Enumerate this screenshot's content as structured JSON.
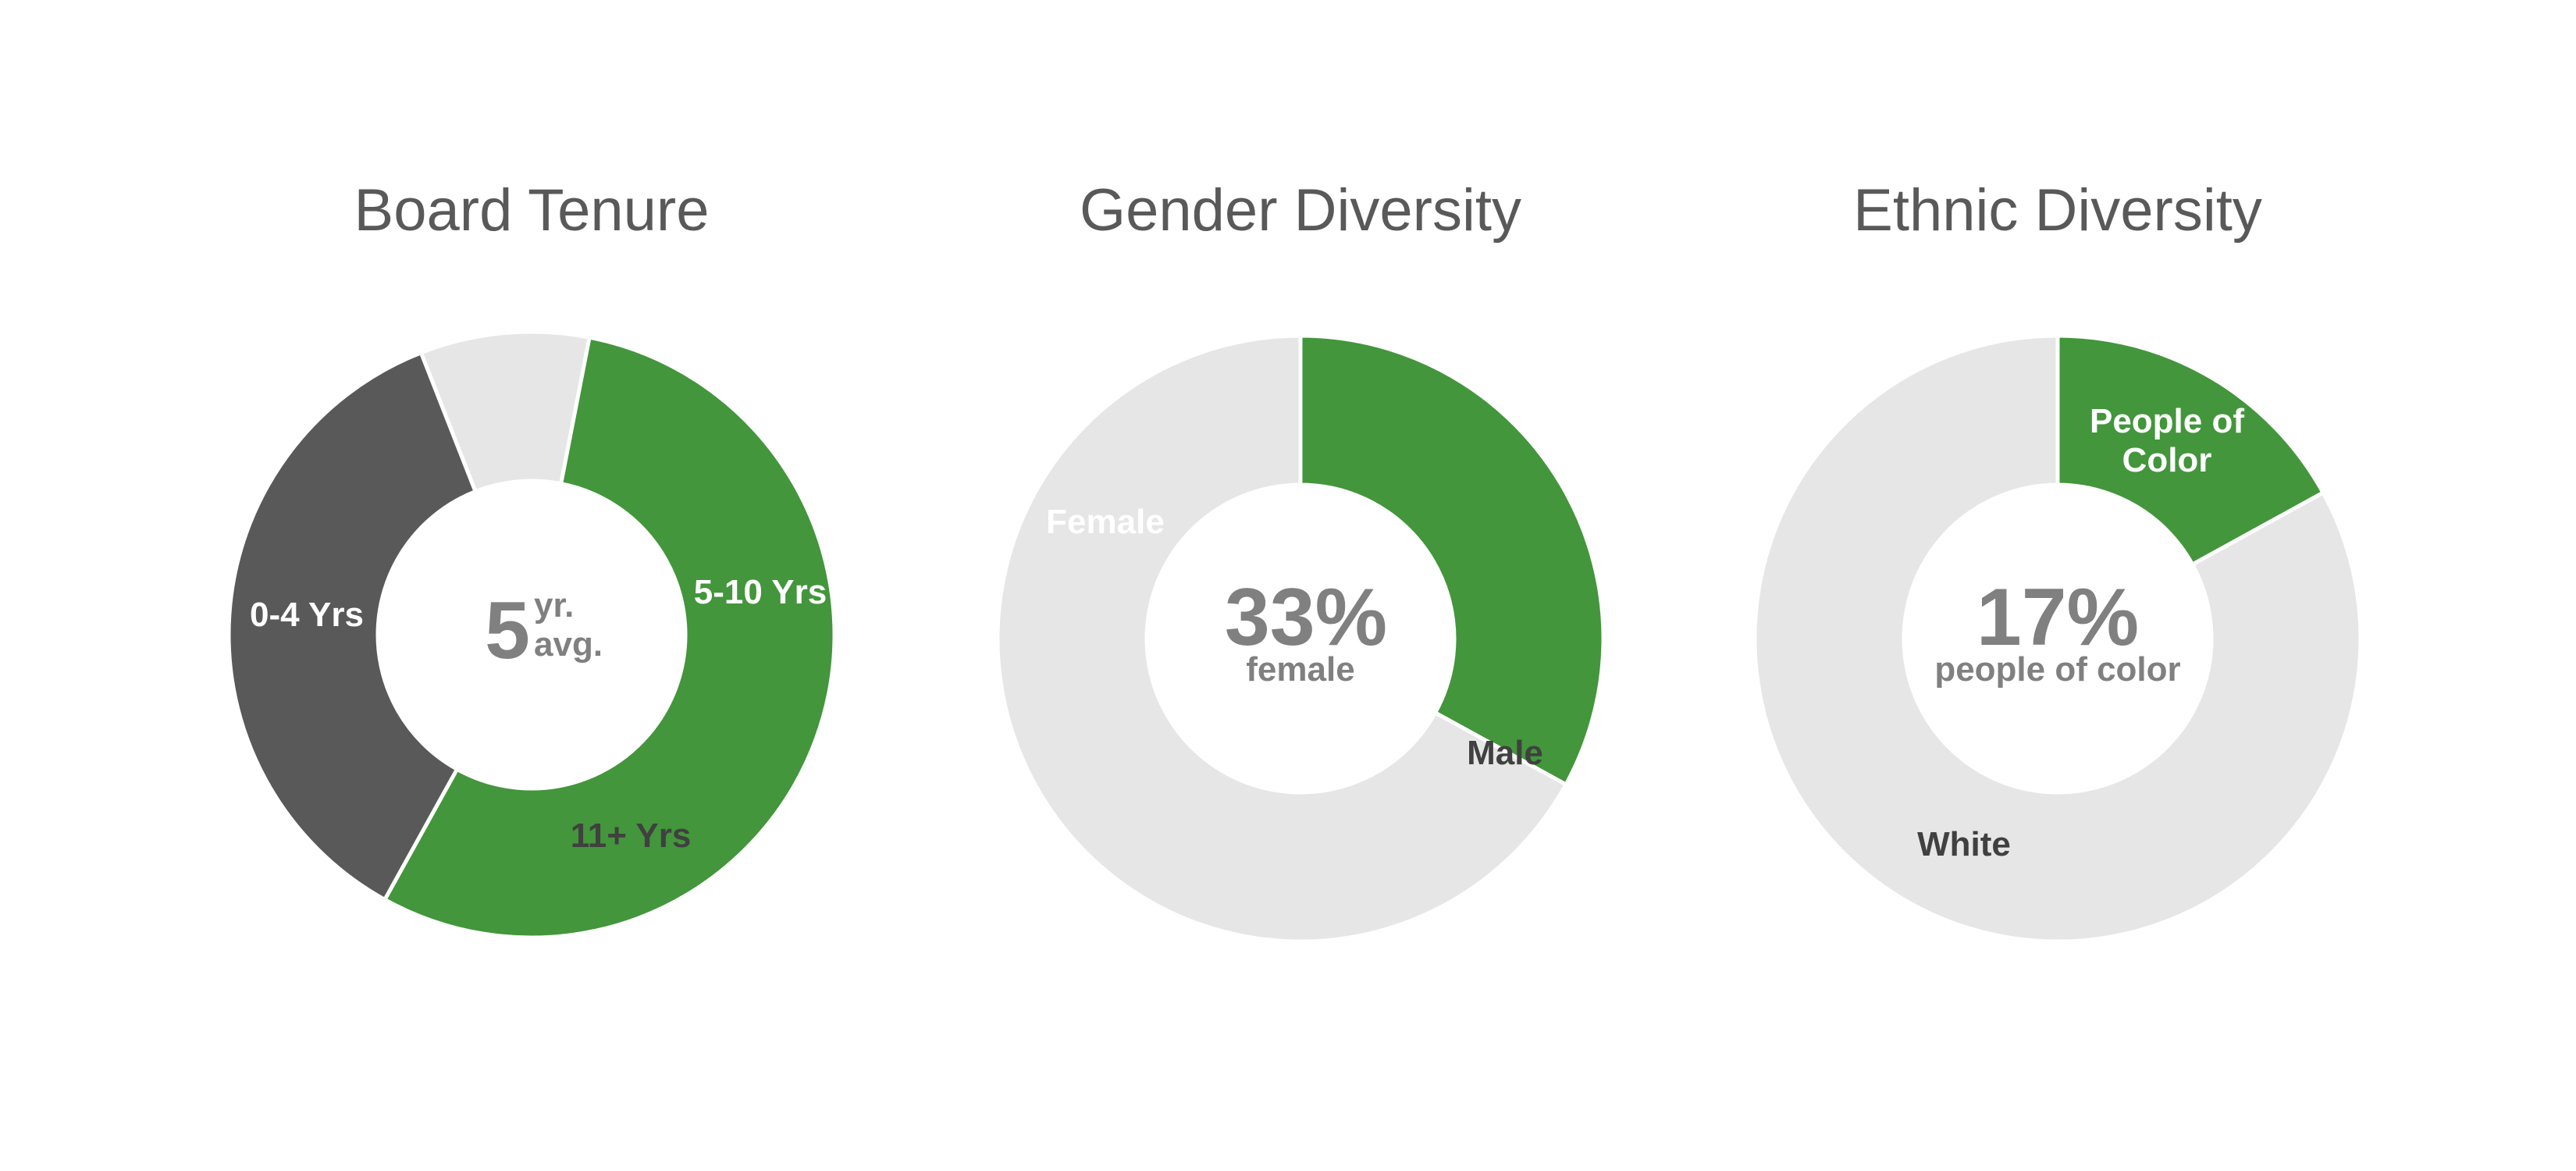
{
  "colors": {
    "green": "#43963b",
    "dark_gray": "#595959",
    "light_gray": "#e6e6e6",
    "title": "#595959",
    "center_text": "#808080",
    "label_on_dark": "#ffffff",
    "label_on_light": "#404040"
  },
  "chart_data": [
    {
      "type": "pie",
      "title": "Board Tenure",
      "labels": [
        "0-4 Yrs",
        "5-10 Yrs",
        "11+ Yrs"
      ],
      "values": [
        55,
        36,
        9
      ],
      "center": {
        "value": "5",
        "unit_top": "yr.",
        "unit_bottom": "avg."
      }
    },
    {
      "type": "pie",
      "title": "Gender Diversity",
      "labels": [
        "Female",
        "Male"
      ],
      "values": [
        33,
        67
      ],
      "center": {
        "value": "33%",
        "caption": "female"
      }
    },
    {
      "type": "pie",
      "title": "Ethnic Diversity",
      "labels": [
        "People of Color",
        "White"
      ],
      "values": [
        17,
        83
      ],
      "center": {
        "value": "17%",
        "caption": "people of color"
      }
    }
  ]
}
